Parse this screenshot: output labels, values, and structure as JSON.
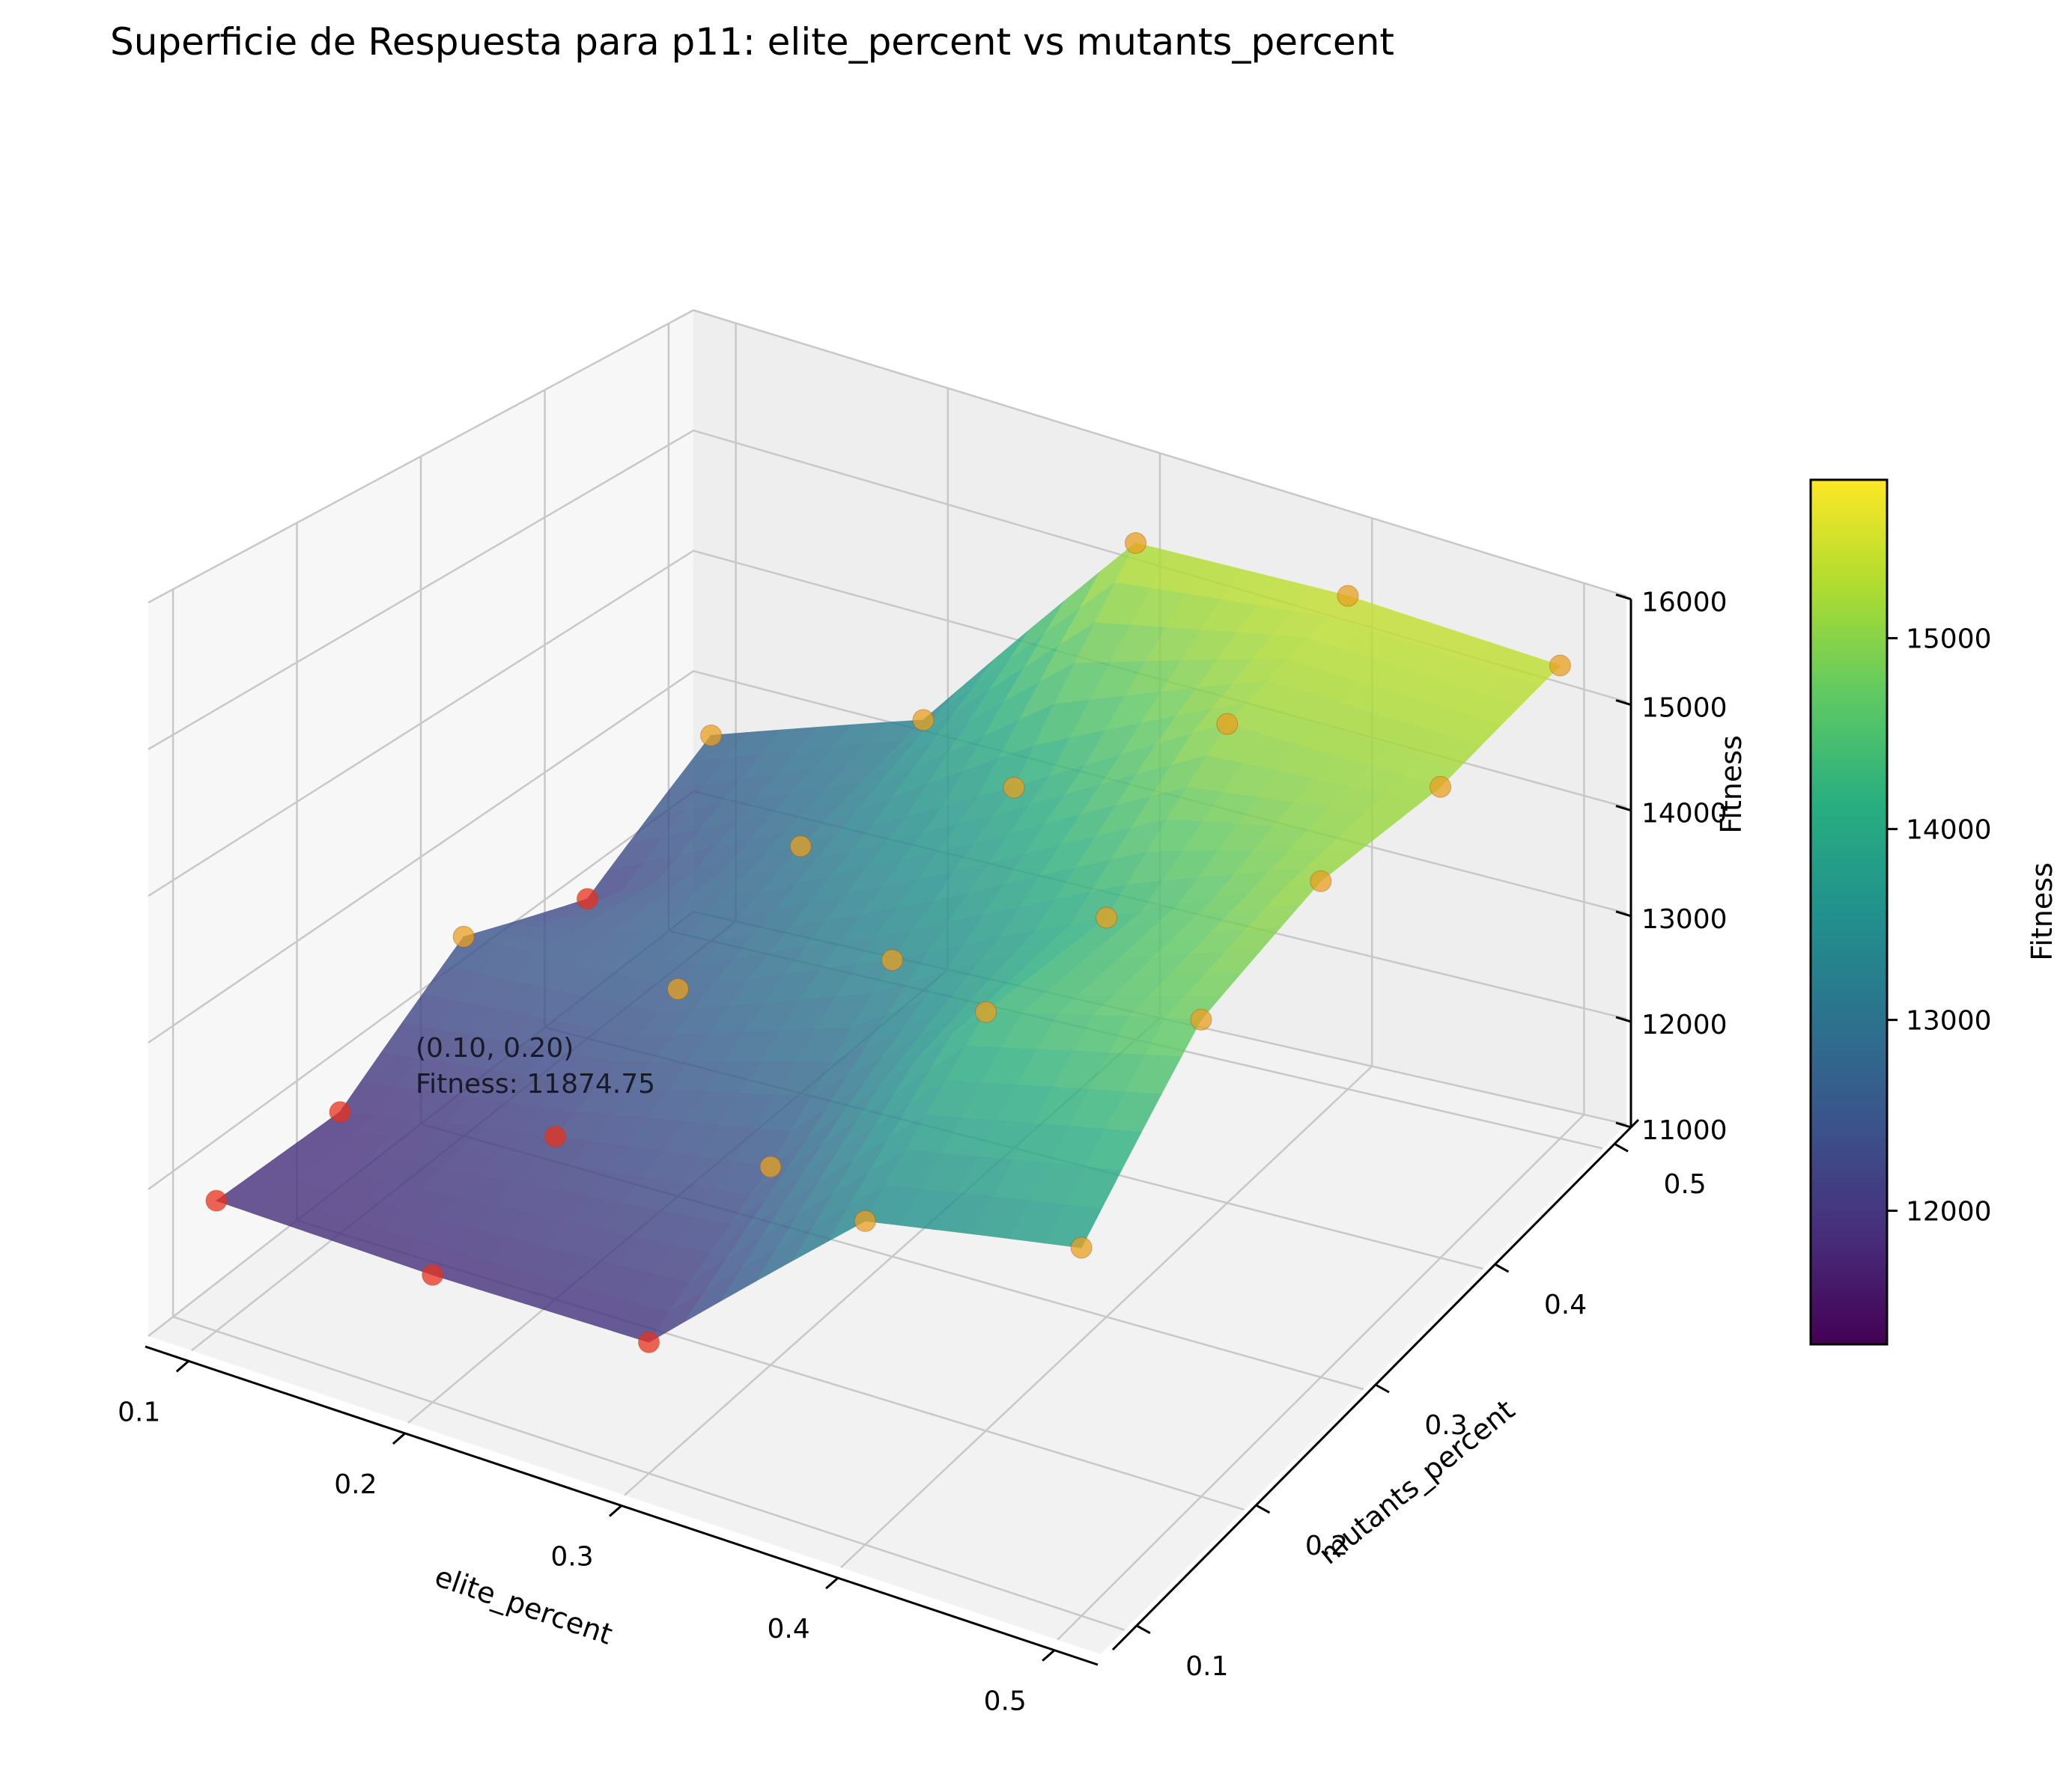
{
  "chart_data": {
    "type": "surface3d",
    "title": "Superficie de Respuesta para p11: elite_percent vs mutants_percent",
    "xlabel": "elite_percent",
    "ylabel": "mutants_percent",
    "zlabel": "Fitness",
    "xlim": [
      0.08,
      0.52
    ],
    "ylim": [
      0.08,
      0.52
    ],
    "zlim": [
      11000,
      16000
    ],
    "xticks": [
      "0.1",
      "0.2",
      "0.3",
      "0.4",
      "0.5"
    ],
    "yticks": [
      "0.1",
      "0.2",
      "0.3",
      "0.4",
      "0.5"
    ],
    "zticks": [
      "11000",
      "12000",
      "13000",
      "14000",
      "15000",
      "16000"
    ],
    "grid": true,
    "colormap": "viridis",
    "colorbar": {
      "label": "Fitness",
      "range": [
        11300,
        15830
      ],
      "ticks": [
        "12000",
        "13000",
        "14000",
        "15000"
      ]
    },
    "points": [
      {
        "x": 0.1,
        "y": 0.1,
        "z": 11900
      },
      {
        "x": 0.1,
        "y": 0.2,
        "z": 11875
      },
      {
        "x": 0.1,
        "y": 0.3,
        "z": 12500
      },
      {
        "x": 0.1,
        "y": 0.4,
        "z": 12100
      },
      {
        "x": 0.1,
        "y": 0.5,
        "z": 12700
      },
      {
        "x": 0.2,
        "y": 0.1,
        "z": 11900
      },
      {
        "x": 0.2,
        "y": 0.2,
        "z": 12200
      },
      {
        "x": 0.2,
        "y": 0.3,
        "z": 12600
      },
      {
        "x": 0.2,
        "y": 0.4,
        "z": 13000
      },
      {
        "x": 0.2,
        "y": 0.5,
        "z": 13300
      },
      {
        "x": 0.3,
        "y": 0.1,
        "z": 11950
      },
      {
        "x": 0.3,
        "y": 0.2,
        "z": 12500
      },
      {
        "x": 0.3,
        "y": 0.3,
        "z": 13350
      },
      {
        "x": 0.3,
        "y": 0.4,
        "z": 14000
      },
      {
        "x": 0.3,
        "y": 0.5,
        "z": 15350
      },
      {
        "x": 0.4,
        "y": 0.1,
        "z": 13400
      },
      {
        "x": 0.4,
        "y": 0.2,
        "z": 14250
      },
      {
        "x": 0.4,
        "y": 0.3,
        "z": 14250
      },
      {
        "x": 0.4,
        "y": 0.4,
        "z": 15100
      },
      {
        "x": 0.4,
        "y": 0.5,
        "z": 15450
      },
      {
        "x": 0.5,
        "y": 0.1,
        "z": 13800
      },
      {
        "x": 0.5,
        "y": 0.2,
        "z": 14800
      },
      {
        "x": 0.5,
        "y": 0.3,
        "z": 15150
      },
      {
        "x": 0.5,
        "y": 0.4,
        "z": 15150
      },
      {
        "x": 0.5,
        "y": 0.5,
        "z": 15400
      }
    ],
    "annotation": {
      "x": 0.1,
      "y": 0.2,
      "z": 11875,
      "line1": "(0.10, 0.20)",
      "line2": "Fitness: 11874.75"
    }
  }
}
